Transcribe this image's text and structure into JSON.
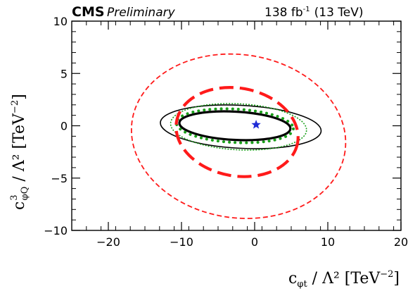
{
  "header": {
    "experiment": "CMS",
    "status": "Preliminary",
    "lumi": "138 fb",
    "lumi_exp": "-1",
    "energy": "(13 TeV)"
  },
  "chart_data": {
    "type": "contour",
    "xlabel_main": "c",
    "xlabel_sub": "φt",
    "xlabel_tail": " / Λ² [TeV",
    "xlabel_exp": "−2",
    "xlabel_close": "]",
    "ylabel_main": "c",
    "ylabel_sup": "3",
    "ylabel_sub": "φQ",
    "ylabel_tail": " / Λ² [TeV",
    "ylabel_exp": "−2",
    "ylabel_close": "]",
    "xlim": [
      -25,
      20
    ],
    "ylim": [
      -10,
      10
    ],
    "x_ticks": [
      {
        "value": -20,
        "label": "−20"
      },
      {
        "value": -10,
        "label": "−10"
      },
      {
        "value": 0,
        "label": "0"
      },
      {
        "value": 10,
        "label": "10"
      },
      {
        "value": 20,
        "label": "20"
      }
    ],
    "y_ticks": [
      {
        "value": -10,
        "label": "−10"
      },
      {
        "value": -5,
        "label": "−5"
      },
      {
        "value": 0,
        "label": "0"
      },
      {
        "value": 5,
        "label": "5"
      },
      {
        "value": 10,
        "label": "10"
      }
    ],
    "best_fit": {
      "x": 0.2,
      "y": 0.1,
      "color": "#1f2bd6"
    },
    "contours": [
      {
        "id": "black-solid-thick",
        "cx": -2.7,
        "cy": 0.0,
        "a": 7.6,
        "b": 1.35,
        "angle": 3,
        "color": "#000000",
        "style": "solid",
        "width": 3.2
      },
      {
        "id": "black-solid-thin",
        "cx": -1.9,
        "cy": -0.1,
        "a": 11.0,
        "b": 2.05,
        "angle": 3,
        "color": "#000000",
        "style": "solid",
        "width": 1.6
      },
      {
        "id": "green-dotted-1",
        "cx": -2.7,
        "cy": 0.0,
        "a": 8.0,
        "b": 1.6,
        "angle": 3,
        "color": "#1a9e1a",
        "style": "dotted-thick",
        "width": 4.0
      },
      {
        "id": "green-dotted-2",
        "cx": -2.2,
        "cy": -0.1,
        "a": 9.3,
        "b": 2.2,
        "angle": 3,
        "color": "#1a9e1a",
        "style": "dotted-thin",
        "width": 1.6
      },
      {
        "id": "red-dashed-thick",
        "cx": -2.4,
        "cy": -0.6,
        "a": 8.4,
        "b": 4.2,
        "angle": 10,
        "color": "#ff1a1a",
        "style": "dashed-thick",
        "width": 4.2
      },
      {
        "id": "red-dashed-thin",
        "cx": -2.2,
        "cy": -1.0,
        "a": 14.7,
        "b": 7.8,
        "angle": 8,
        "color": "#ff1a1a",
        "style": "dashed-thin",
        "width": 1.8
      }
    ],
    "grid": false,
    "legend": "none"
  }
}
